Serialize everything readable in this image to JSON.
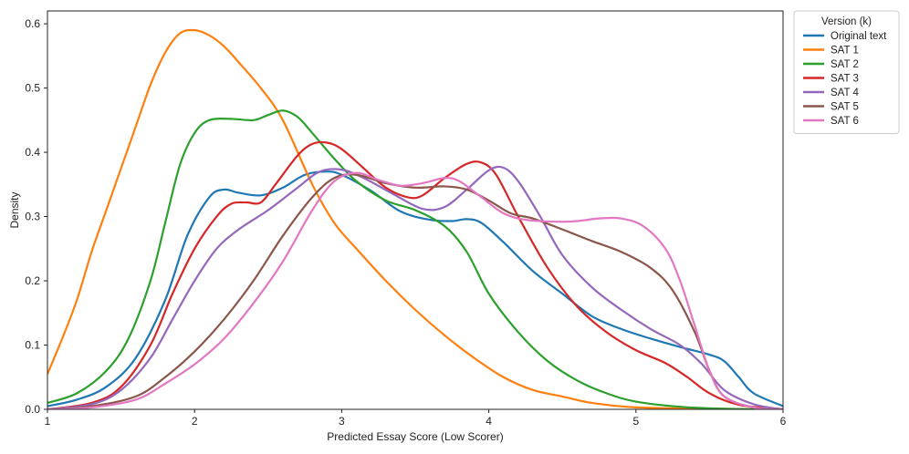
{
  "chart_data": {
    "type": "line",
    "title": "",
    "xlabel": "Predicted Essay Score (Low Scorer)",
    "ylabel": "Density",
    "xlim": [
      1,
      6
    ],
    "ylim": [
      0,
      0.62
    ],
    "x_ticks": [
      "1",
      "2",
      "3",
      "4",
      "5",
      "6"
    ],
    "y_ticks": [
      "0.0",
      "0.1",
      "0.2",
      "0.3",
      "0.4",
      "0.5",
      "0.6"
    ],
    "grid": false,
    "legend": {
      "title": "Version (k)",
      "placement": "outside-top-right"
    },
    "series": [
      {
        "name": "Original text",
        "color": "#1f77b4",
        "points": [
          [
            1,
            0.005
          ],
          [
            1.2,
            0.015
          ],
          [
            1.4,
            0.035
          ],
          [
            1.6,
            0.08
          ],
          [
            1.8,
            0.17
          ],
          [
            1.95,
            0.27
          ],
          [
            2.1,
            0.33
          ],
          [
            2.2,
            0.342
          ],
          [
            2.3,
            0.337
          ],
          [
            2.45,
            0.333
          ],
          [
            2.6,
            0.345
          ],
          [
            2.75,
            0.365
          ],
          [
            2.9,
            0.37
          ],
          [
            3.0,
            0.365
          ],
          [
            3.2,
            0.34
          ],
          [
            3.4,
            0.308
          ],
          [
            3.6,
            0.295
          ],
          [
            3.75,
            0.293
          ],
          [
            3.85,
            0.296
          ],
          [
            3.95,
            0.29
          ],
          [
            4.1,
            0.26
          ],
          [
            4.3,
            0.215
          ],
          [
            4.5,
            0.18
          ],
          [
            4.7,
            0.145
          ],
          [
            4.9,
            0.125
          ],
          [
            5.1,
            0.11
          ],
          [
            5.3,
            0.097
          ],
          [
            5.5,
            0.085
          ],
          [
            5.6,
            0.075
          ],
          [
            5.7,
            0.05
          ],
          [
            5.8,
            0.025
          ],
          [
            6.0,
            0.005
          ]
        ]
      },
      {
        "name": "SAT 1",
        "color": "#ff7f0e",
        "points": [
          [
            1,
            0.055
          ],
          [
            1.1,
            0.11
          ],
          [
            1.2,
            0.17
          ],
          [
            1.3,
            0.245
          ],
          [
            1.4,
            0.31
          ],
          [
            1.5,
            0.375
          ],
          [
            1.6,
            0.44
          ],
          [
            1.7,
            0.505
          ],
          [
            1.8,
            0.555
          ],
          [
            1.9,
            0.585
          ],
          [
            2.0,
            0.59
          ],
          [
            2.1,
            0.582
          ],
          [
            2.2,
            0.565
          ],
          [
            2.3,
            0.54
          ],
          [
            2.45,
            0.5
          ],
          [
            2.6,
            0.45
          ],
          [
            2.8,
            0.35
          ],
          [
            2.95,
            0.29
          ],
          [
            3.1,
            0.25
          ],
          [
            3.3,
            0.2
          ],
          [
            3.5,
            0.155
          ],
          [
            3.7,
            0.115
          ],
          [
            3.9,
            0.08
          ],
          [
            4.1,
            0.05
          ],
          [
            4.3,
            0.03
          ],
          [
            4.5,
            0.02
          ],
          [
            4.7,
            0.01
          ],
          [
            5.0,
            0.003
          ],
          [
            5.5,
            0.001
          ],
          [
            6.0,
            0.0
          ]
        ]
      },
      {
        "name": "SAT 2",
        "color": "#2ca02c",
        "points": [
          [
            1,
            0.01
          ],
          [
            1.2,
            0.025
          ],
          [
            1.4,
            0.06
          ],
          [
            1.55,
            0.11
          ],
          [
            1.7,
            0.2
          ],
          [
            1.8,
            0.29
          ],
          [
            1.9,
            0.38
          ],
          [
            2.0,
            0.43
          ],
          [
            2.1,
            0.45
          ],
          [
            2.25,
            0.452
          ],
          [
            2.4,
            0.45
          ],
          [
            2.5,
            0.458
          ],
          [
            2.6,
            0.465
          ],
          [
            2.7,
            0.455
          ],
          [
            2.8,
            0.43
          ],
          [
            2.95,
            0.39
          ],
          [
            3.1,
            0.355
          ],
          [
            3.3,
            0.325
          ],
          [
            3.5,
            0.31
          ],
          [
            3.7,
            0.285
          ],
          [
            3.85,
            0.245
          ],
          [
            4.0,
            0.18
          ],
          [
            4.2,
            0.12
          ],
          [
            4.4,
            0.075
          ],
          [
            4.6,
            0.045
          ],
          [
            4.8,
            0.025
          ],
          [
            5.0,
            0.012
          ],
          [
            5.3,
            0.004
          ],
          [
            5.6,
            0.001
          ],
          [
            6.0,
            0.0
          ]
        ]
      },
      {
        "name": "SAT 3",
        "color": "#d62728",
        "points": [
          [
            1,
            0.0
          ],
          [
            1.3,
            0.01
          ],
          [
            1.5,
            0.035
          ],
          [
            1.7,
            0.1
          ],
          [
            1.85,
            0.18
          ],
          [
            2.0,
            0.25
          ],
          [
            2.15,
            0.3
          ],
          [
            2.25,
            0.32
          ],
          [
            2.35,
            0.322
          ],
          [
            2.45,
            0.322
          ],
          [
            2.55,
            0.35
          ],
          [
            2.7,
            0.395
          ],
          [
            2.8,
            0.413
          ],
          [
            2.9,
            0.415
          ],
          [
            3.0,
            0.405
          ],
          [
            3.15,
            0.375
          ],
          [
            3.3,
            0.345
          ],
          [
            3.45,
            0.33
          ],
          [
            3.55,
            0.333
          ],
          [
            3.7,
            0.36
          ],
          [
            3.85,
            0.382
          ],
          [
            3.95,
            0.384
          ],
          [
            4.05,
            0.365
          ],
          [
            4.2,
            0.3
          ],
          [
            4.4,
            0.22
          ],
          [
            4.6,
            0.16
          ],
          [
            4.8,
            0.12
          ],
          [
            5.0,
            0.092
          ],
          [
            5.2,
            0.072
          ],
          [
            5.35,
            0.05
          ],
          [
            5.5,
            0.025
          ],
          [
            5.7,
            0.007
          ],
          [
            6.0,
            0.0
          ]
        ]
      },
      {
        "name": "SAT 4",
        "color": "#9467bd",
        "points": [
          [
            1,
            0.0
          ],
          [
            1.3,
            0.008
          ],
          [
            1.5,
            0.03
          ],
          [
            1.7,
            0.08
          ],
          [
            1.85,
            0.14
          ],
          [
            2.0,
            0.2
          ],
          [
            2.15,
            0.25
          ],
          [
            2.3,
            0.28
          ],
          [
            2.5,
            0.31
          ],
          [
            2.7,
            0.345
          ],
          [
            2.85,
            0.37
          ],
          [
            3.0,
            0.373
          ],
          [
            3.15,
            0.36
          ],
          [
            3.35,
            0.335
          ],
          [
            3.55,
            0.312
          ],
          [
            3.7,
            0.315
          ],
          [
            3.85,
            0.342
          ],
          [
            4.0,
            0.372
          ],
          [
            4.1,
            0.376
          ],
          [
            4.2,
            0.355
          ],
          [
            4.35,
            0.3
          ],
          [
            4.5,
            0.24
          ],
          [
            4.7,
            0.19
          ],
          [
            4.9,
            0.155
          ],
          [
            5.1,
            0.125
          ],
          [
            5.3,
            0.1
          ],
          [
            5.45,
            0.07
          ],
          [
            5.6,
            0.03
          ],
          [
            5.8,
            0.008
          ],
          [
            6.0,
            0.0
          ]
        ]
      },
      {
        "name": "SAT 5",
        "color": "#8c564b",
        "points": [
          [
            1,
            0.0
          ],
          [
            1.3,
            0.005
          ],
          [
            1.6,
            0.02
          ],
          [
            1.8,
            0.05
          ],
          [
            2.0,
            0.09
          ],
          [
            2.2,
            0.14
          ],
          [
            2.4,
            0.2
          ],
          [
            2.6,
            0.27
          ],
          [
            2.8,
            0.33
          ],
          [
            2.95,
            0.36
          ],
          [
            3.1,
            0.365
          ],
          [
            3.3,
            0.352
          ],
          [
            3.5,
            0.345
          ],
          [
            3.7,
            0.347
          ],
          [
            3.85,
            0.342
          ],
          [
            4.0,
            0.325
          ],
          [
            4.15,
            0.305
          ],
          [
            4.3,
            0.297
          ],
          [
            4.5,
            0.28
          ],
          [
            4.7,
            0.262
          ],
          [
            4.9,
            0.245
          ],
          [
            5.1,
            0.22
          ],
          [
            5.25,
            0.185
          ],
          [
            5.4,
            0.12
          ],
          [
            5.5,
            0.06
          ],
          [
            5.6,
            0.02
          ],
          [
            5.8,
            0.003
          ],
          [
            6.0,
            0.0
          ]
        ]
      },
      {
        "name": "SAT 6",
        "color": "#e377c2",
        "points": [
          [
            1,
            0.0
          ],
          [
            1.3,
            0.003
          ],
          [
            1.6,
            0.015
          ],
          [
            1.8,
            0.04
          ],
          [
            2.0,
            0.07
          ],
          [
            2.2,
            0.11
          ],
          [
            2.4,
            0.165
          ],
          [
            2.6,
            0.23
          ],
          [
            2.8,
            0.31
          ],
          [
            2.95,
            0.355
          ],
          [
            3.1,
            0.368
          ],
          [
            3.25,
            0.357
          ],
          [
            3.4,
            0.348
          ],
          [
            3.55,
            0.352
          ],
          [
            3.7,
            0.36
          ],
          [
            3.8,
            0.355
          ],
          [
            3.95,
            0.33
          ],
          [
            4.1,
            0.305
          ],
          [
            4.25,
            0.295
          ],
          [
            4.45,
            0.292
          ],
          [
            4.6,
            0.293
          ],
          [
            4.75,
            0.297
          ],
          [
            4.9,
            0.297
          ],
          [
            5.05,
            0.285
          ],
          [
            5.2,
            0.25
          ],
          [
            5.3,
            0.2
          ],
          [
            5.4,
            0.13
          ],
          [
            5.5,
            0.06
          ],
          [
            5.6,
            0.02
          ],
          [
            5.8,
            0.003
          ],
          [
            6.0,
            0.0
          ]
        ]
      }
    ]
  }
}
